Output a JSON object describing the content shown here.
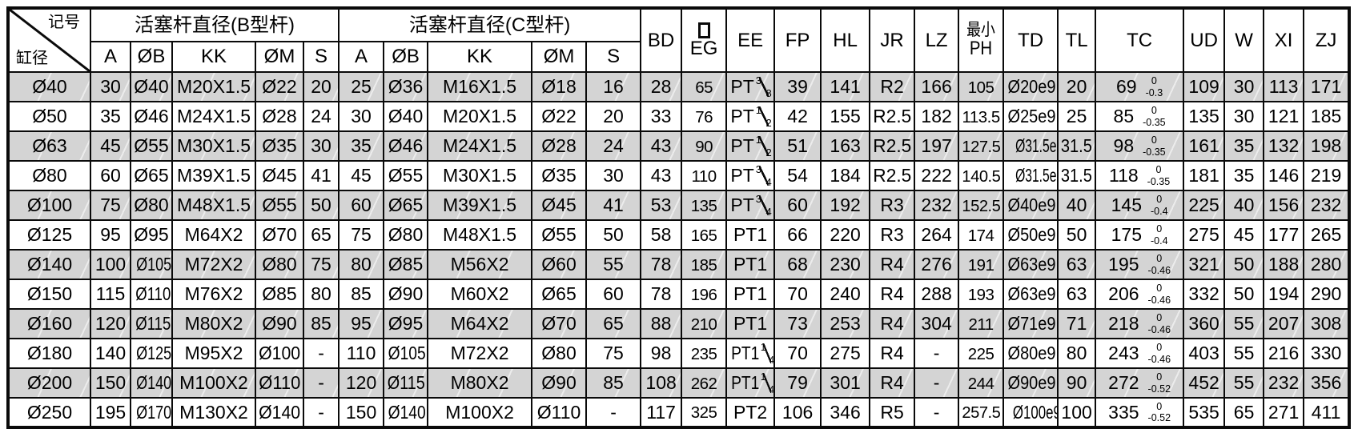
{
  "colors": {
    "grid": "#0a0a0a",
    "row_shade": "#d4d4d4",
    "background": "#ffffff"
  },
  "table": {
    "corner": {
      "top_right": "记号",
      "bottom_left": "缸径"
    },
    "groups": [
      {
        "label": "活塞杆直径(B型杆)",
        "columns": [
          "A",
          "ØB",
          "KK",
          "ØM",
          "S"
        ]
      },
      {
        "label": "活塞杆直径(C型杆)",
        "columns": [
          "A",
          "ØB",
          "KK",
          "ØM",
          "S"
        ]
      }
    ],
    "spanning_headers": [
      {
        "label": "BD"
      },
      {
        "label": "EG",
        "symbol_above": "square-outline"
      },
      {
        "label": "EE"
      },
      {
        "label": "FP"
      },
      {
        "label": "HL"
      },
      {
        "label": "JR"
      },
      {
        "label": "LZ"
      },
      {
        "label": "PH",
        "text_above": "最小"
      },
      {
        "label": "TD"
      },
      {
        "label": "TL"
      },
      {
        "label": "TC"
      },
      {
        "label": "UD"
      },
      {
        "label": "W"
      },
      {
        "label": "XI"
      },
      {
        "label": "ZJ"
      }
    ],
    "rows": [
      {
        "bore": "Ø40",
        "shaded": true,
        "b": [
          "30",
          "Ø40",
          "M20X1.5",
          "Ø22",
          "20"
        ],
        "c": [
          "25",
          "Ø36",
          "M16X1.5",
          "Ø18",
          "16"
        ],
        "bd": "28",
        "eg": "65",
        "ee": {
          "t": "PT",
          "f": "3/8"
        },
        "fp": "39",
        "hl": "141",
        "jr": "R2",
        "lz": "166",
        "ph": "105",
        "td": "Ø20e9",
        "tl": "20",
        "tc": {
          "v": "69",
          "tol": [
            "0",
            "-0.3"
          ]
        },
        "ud": "109",
        "w": "30",
        "xi": "113",
        "zj": "171"
      },
      {
        "bore": "Ø50",
        "shaded": false,
        "b": [
          "35",
          "Ø46",
          "M24X1.5",
          "Ø28",
          "24"
        ],
        "c": [
          "30",
          "Ø40",
          "M20X1.5",
          "Ø22",
          "20"
        ],
        "bd": "33",
        "eg": "76",
        "ee": {
          "t": "PT",
          "f": "1/2"
        },
        "fp": "42",
        "hl": "155",
        "jr": "R2.5",
        "lz": "182",
        "ph": "113.5",
        "td": "Ø25e9",
        "tl": "25",
        "tc": {
          "v": "85",
          "tol": [
            "0",
            "-0.35"
          ]
        },
        "ud": "135",
        "w": "30",
        "xi": "121",
        "zj": "185"
      },
      {
        "bore": "Ø63",
        "shaded": true,
        "b": [
          "45",
          "Ø55",
          "M30X1.5",
          "Ø35",
          "30"
        ],
        "c": [
          "35",
          "Ø46",
          "M24X1.5",
          "Ø28",
          "24"
        ],
        "bd": "43",
        "eg": "90",
        "ee": {
          "t": "PT",
          "f": "1/2"
        },
        "fp": "51",
        "hl": "163",
        "jr": "R2.5",
        "lz": "197",
        "ph": "127.5",
        "td": "Ø31.5e9",
        "tl": "31.5",
        "tc": {
          "v": "98",
          "tol": [
            "0",
            "-0.35"
          ]
        },
        "ud": "161",
        "w": "35",
        "xi": "132",
        "zj": "198"
      },
      {
        "bore": "Ø80",
        "shaded": false,
        "b": [
          "60",
          "Ø65",
          "M39X1.5",
          "Ø45",
          "41"
        ],
        "c": [
          "45",
          "Ø55",
          "M30X1.5",
          "Ø35",
          "30"
        ],
        "bd": "43",
        "eg": "110",
        "ee": {
          "t": "PT",
          "f": "3/4"
        },
        "fp": "54",
        "hl": "184",
        "jr": "R2.5",
        "lz": "222",
        "ph": "140.5",
        "td": "Ø31.5e9",
        "tl": "31.5",
        "tc": {
          "v": "118",
          "tol": [
            "0",
            "-0.35"
          ]
        },
        "ud": "181",
        "w": "35",
        "xi": "146",
        "zj": "219"
      },
      {
        "bore": "Ø100",
        "shaded": true,
        "b": [
          "75",
          "Ø80",
          "M48X1.5",
          "Ø55",
          "50"
        ],
        "c": [
          "60",
          "Ø65",
          "M39X1.5",
          "Ø45",
          "41"
        ],
        "bd": "53",
        "eg": "135",
        "ee": {
          "t": "PT",
          "f": "3/4"
        },
        "fp": "60",
        "hl": "192",
        "jr": "R3",
        "lz": "232",
        "ph": "152.5",
        "td": "Ø40e9",
        "tl": "40",
        "tc": {
          "v": "145",
          "tol": [
            "0",
            "-0.4"
          ]
        },
        "ud": "225",
        "w": "40",
        "xi": "156",
        "zj": "232"
      },
      {
        "bore": "Ø125",
        "shaded": false,
        "b": [
          "95",
          "Ø95",
          "M64X2",
          "Ø70",
          "65"
        ],
        "c": [
          "75",
          "Ø80",
          "M48X1.5",
          "Ø55",
          "50"
        ],
        "bd": "58",
        "eg": "165",
        "ee": {
          "t": "PT1"
        },
        "fp": "66",
        "hl": "220",
        "jr": "R3",
        "lz": "264",
        "ph": "174",
        "td": "Ø50e9",
        "tl": "50",
        "tc": {
          "v": "175",
          "tol": [
            "0",
            "-0.4"
          ]
        },
        "ud": "275",
        "w": "45",
        "xi": "177",
        "zj": "265"
      },
      {
        "bore": "Ø140",
        "shaded": true,
        "b": [
          "100",
          "Ø105",
          "M72X2",
          "Ø80",
          "75"
        ],
        "c": [
          "80",
          "Ø85",
          "M56X2",
          "Ø60",
          "55"
        ],
        "bd": "78",
        "eg": "185",
        "ee": {
          "t": "PT1"
        },
        "fp": "68",
        "hl": "230",
        "jr": "R4",
        "lz": "276",
        "ph": "191",
        "td": "Ø63e9",
        "tl": "63",
        "tc": {
          "v": "195",
          "tol": [
            "0",
            "-0.46"
          ]
        },
        "ud": "321",
        "w": "50",
        "xi": "188",
        "zj": "280"
      },
      {
        "bore": "Ø150",
        "shaded": false,
        "b": [
          "115",
          "Ø110",
          "M76X2",
          "Ø85",
          "80"
        ],
        "c": [
          "85",
          "Ø90",
          "M60X2",
          "Ø65",
          "60"
        ],
        "bd": "78",
        "eg": "196",
        "ee": {
          "t": "PT1"
        },
        "fp": "70",
        "hl": "240",
        "jr": "R4",
        "lz": "288",
        "ph": "193",
        "td": "Ø63e9",
        "tl": "63",
        "tc": {
          "v": "206",
          "tol": [
            "0",
            "-0.46"
          ]
        },
        "ud": "332",
        "w": "50",
        "xi": "194",
        "zj": "290"
      },
      {
        "bore": "Ø160",
        "shaded": true,
        "b": [
          "120",
          "Ø115",
          "M80X2",
          "Ø90",
          "85"
        ],
        "c": [
          "95",
          "Ø95",
          "M64X2",
          "Ø70",
          "65"
        ],
        "bd": "88",
        "eg": "210",
        "ee": {
          "t": "PT1"
        },
        "fp": "73",
        "hl": "253",
        "jr": "R4",
        "lz": "304",
        "ph": "211",
        "td": "Ø71e9",
        "tl": "71",
        "tc": {
          "v": "218",
          "tol": [
            "0",
            "-0.46"
          ]
        },
        "ud": "360",
        "w": "55",
        "xi": "207",
        "zj": "308"
      },
      {
        "bore": "Ø180",
        "shaded": false,
        "b": [
          "140",
          "Ø125",
          "M95X2",
          "Ø100",
          "-"
        ],
        "c": [
          "110",
          "Ø105",
          "M72X2",
          "Ø80",
          "75"
        ],
        "bd": "98",
        "eg": "235",
        "ee": {
          "t": "PT1",
          "f": "1/4"
        },
        "fp": "70",
        "hl": "275",
        "jr": "R4",
        "lz": "-",
        "ph": "225",
        "td": "Ø80e9",
        "tl": "80",
        "tc": {
          "v": "243",
          "tol": [
            "0",
            "-0.46"
          ]
        },
        "ud": "403",
        "w": "55",
        "xi": "216",
        "zj": "330"
      },
      {
        "bore": "Ø200",
        "shaded": true,
        "b": [
          "150",
          "Ø140",
          "M100X2",
          "Ø110",
          "-"
        ],
        "c": [
          "120",
          "Ø115",
          "M80X2",
          "Ø90",
          "85"
        ],
        "bd": "108",
        "eg": "262",
        "ee": {
          "t": "PT1",
          "f": "1/4"
        },
        "fp": "79",
        "hl": "301",
        "jr": "R4",
        "lz": "-",
        "ph": "244",
        "td": "Ø90e9",
        "tl": "90",
        "tc": {
          "v": "272",
          "tol": [
            "0",
            "-0.52"
          ]
        },
        "ud": "452",
        "w": "55",
        "xi": "232",
        "zj": "356"
      },
      {
        "bore": "Ø250",
        "shaded": false,
        "b": [
          "195",
          "Ø170",
          "M130X2",
          "Ø140",
          "-"
        ],
        "c": [
          "150",
          "Ø140",
          "M100X2",
          "Ø110",
          "-"
        ],
        "bd": "117",
        "eg": "325",
        "ee": {
          "t": "PT2"
        },
        "fp": "106",
        "hl": "346",
        "jr": "R5",
        "lz": "-",
        "ph": "257.5",
        "td": "Ø100e9",
        "tl": "100",
        "tc": {
          "v": "335",
          "tol": [
            "0",
            "-0.52"
          ]
        },
        "ud": "535",
        "w": "65",
        "xi": "271",
        "zj": "411"
      }
    ]
  }
}
